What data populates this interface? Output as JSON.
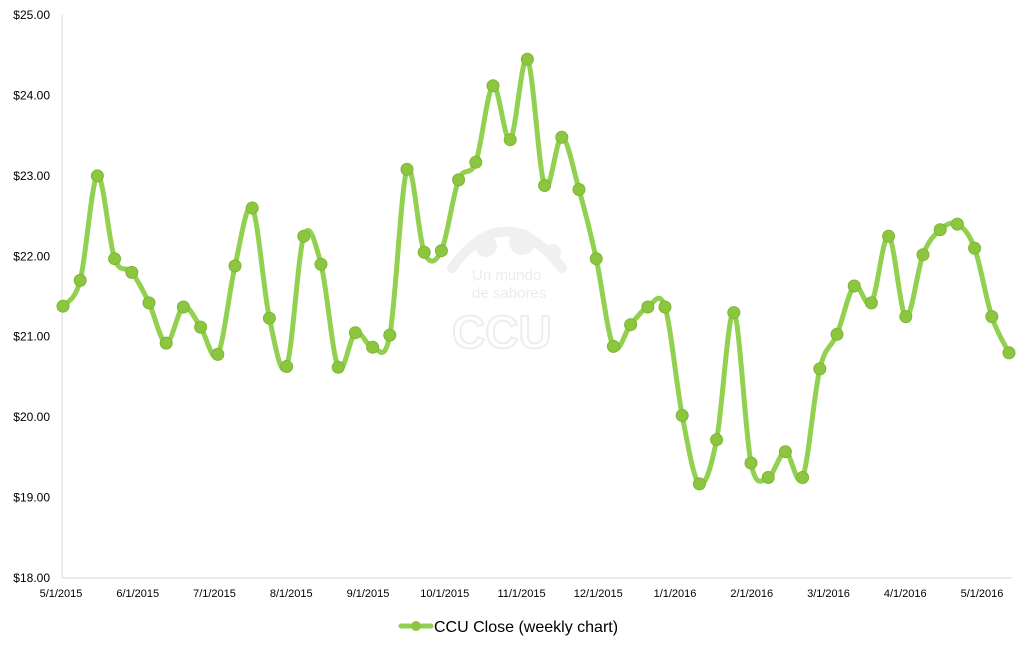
{
  "chart_data": {
    "type": "line",
    "title": "",
    "xlabel": "",
    "ylabel": "",
    "ylim": [
      18,
      25
    ],
    "y_ticks": [
      "$18.00",
      "$19.00",
      "$20.00",
      "$21.00",
      "$22.00",
      "$23.00",
      "$24.00",
      "$25.00"
    ],
    "x_ticks": [
      "5/1/2015",
      "6/1/2015",
      "7/1/2015",
      "8/1/2015",
      "9/1/2015",
      "10/1/2015",
      "11/1/2015",
      "12/1/2015",
      "1/1/2016",
      "2/1/2016",
      "3/1/2016",
      "4/1/2016",
      "5/1/2016"
    ],
    "grid": false,
    "legend_position": "bottom-center",
    "series": [
      {
        "name": "CCU Close (weekly chart)",
        "color": "#92d050",
        "values": [
          21.38,
          21.7,
          23.0,
          21.97,
          21.8,
          21.42,
          20.92,
          21.37,
          21.12,
          20.78,
          21.88,
          22.6,
          21.23,
          20.63,
          22.25,
          21.9,
          20.62,
          21.05,
          20.87,
          21.02,
          23.08,
          22.05,
          22.07,
          22.95,
          23.17,
          24.12,
          23.45,
          24.45,
          22.88,
          23.48,
          22.83,
          21.97,
          20.88,
          21.15,
          21.37,
          21.37,
          20.02,
          19.17,
          19.72,
          21.3,
          19.43,
          19.25,
          19.57,
          19.25,
          20.6,
          21.03,
          21.63,
          21.42,
          22.25,
          21.25,
          22.02,
          22.33,
          22.4,
          22.1,
          21.25,
          20.8
        ]
      }
    ]
  },
  "watermark": {
    "line1": "Un mundo",
    "line2": "de sabores",
    "logo": "CCU"
  }
}
